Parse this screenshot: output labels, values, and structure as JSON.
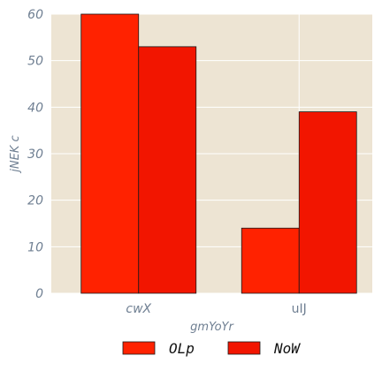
{
  "chart_data": {
    "type": "bar",
    "categories": [
      "cwX",
      "uIJ"
    ],
    "series": [
      {
        "name": "OLp",
        "values": [
          60,
          14
        ],
        "color": "#ff2200"
      },
      {
        "name": "NoW",
        "values": [
          53,
          39
        ],
        "color": "#f21500"
      }
    ],
    "xlabel": "gmYoYr",
    "ylabel": "jNEK c",
    "ylim": [
      0,
      60
    ],
    "yticks": [
      0,
      10,
      20,
      30,
      40,
      50,
      60
    ],
    "grid": true,
    "legend_position": "bottom",
    "colors": {
      "plot_background": "#ede4d3",
      "grid": "#ffffff",
      "bar_edge": "#1a1a1a",
      "text": "#6f7f92"
    }
  }
}
